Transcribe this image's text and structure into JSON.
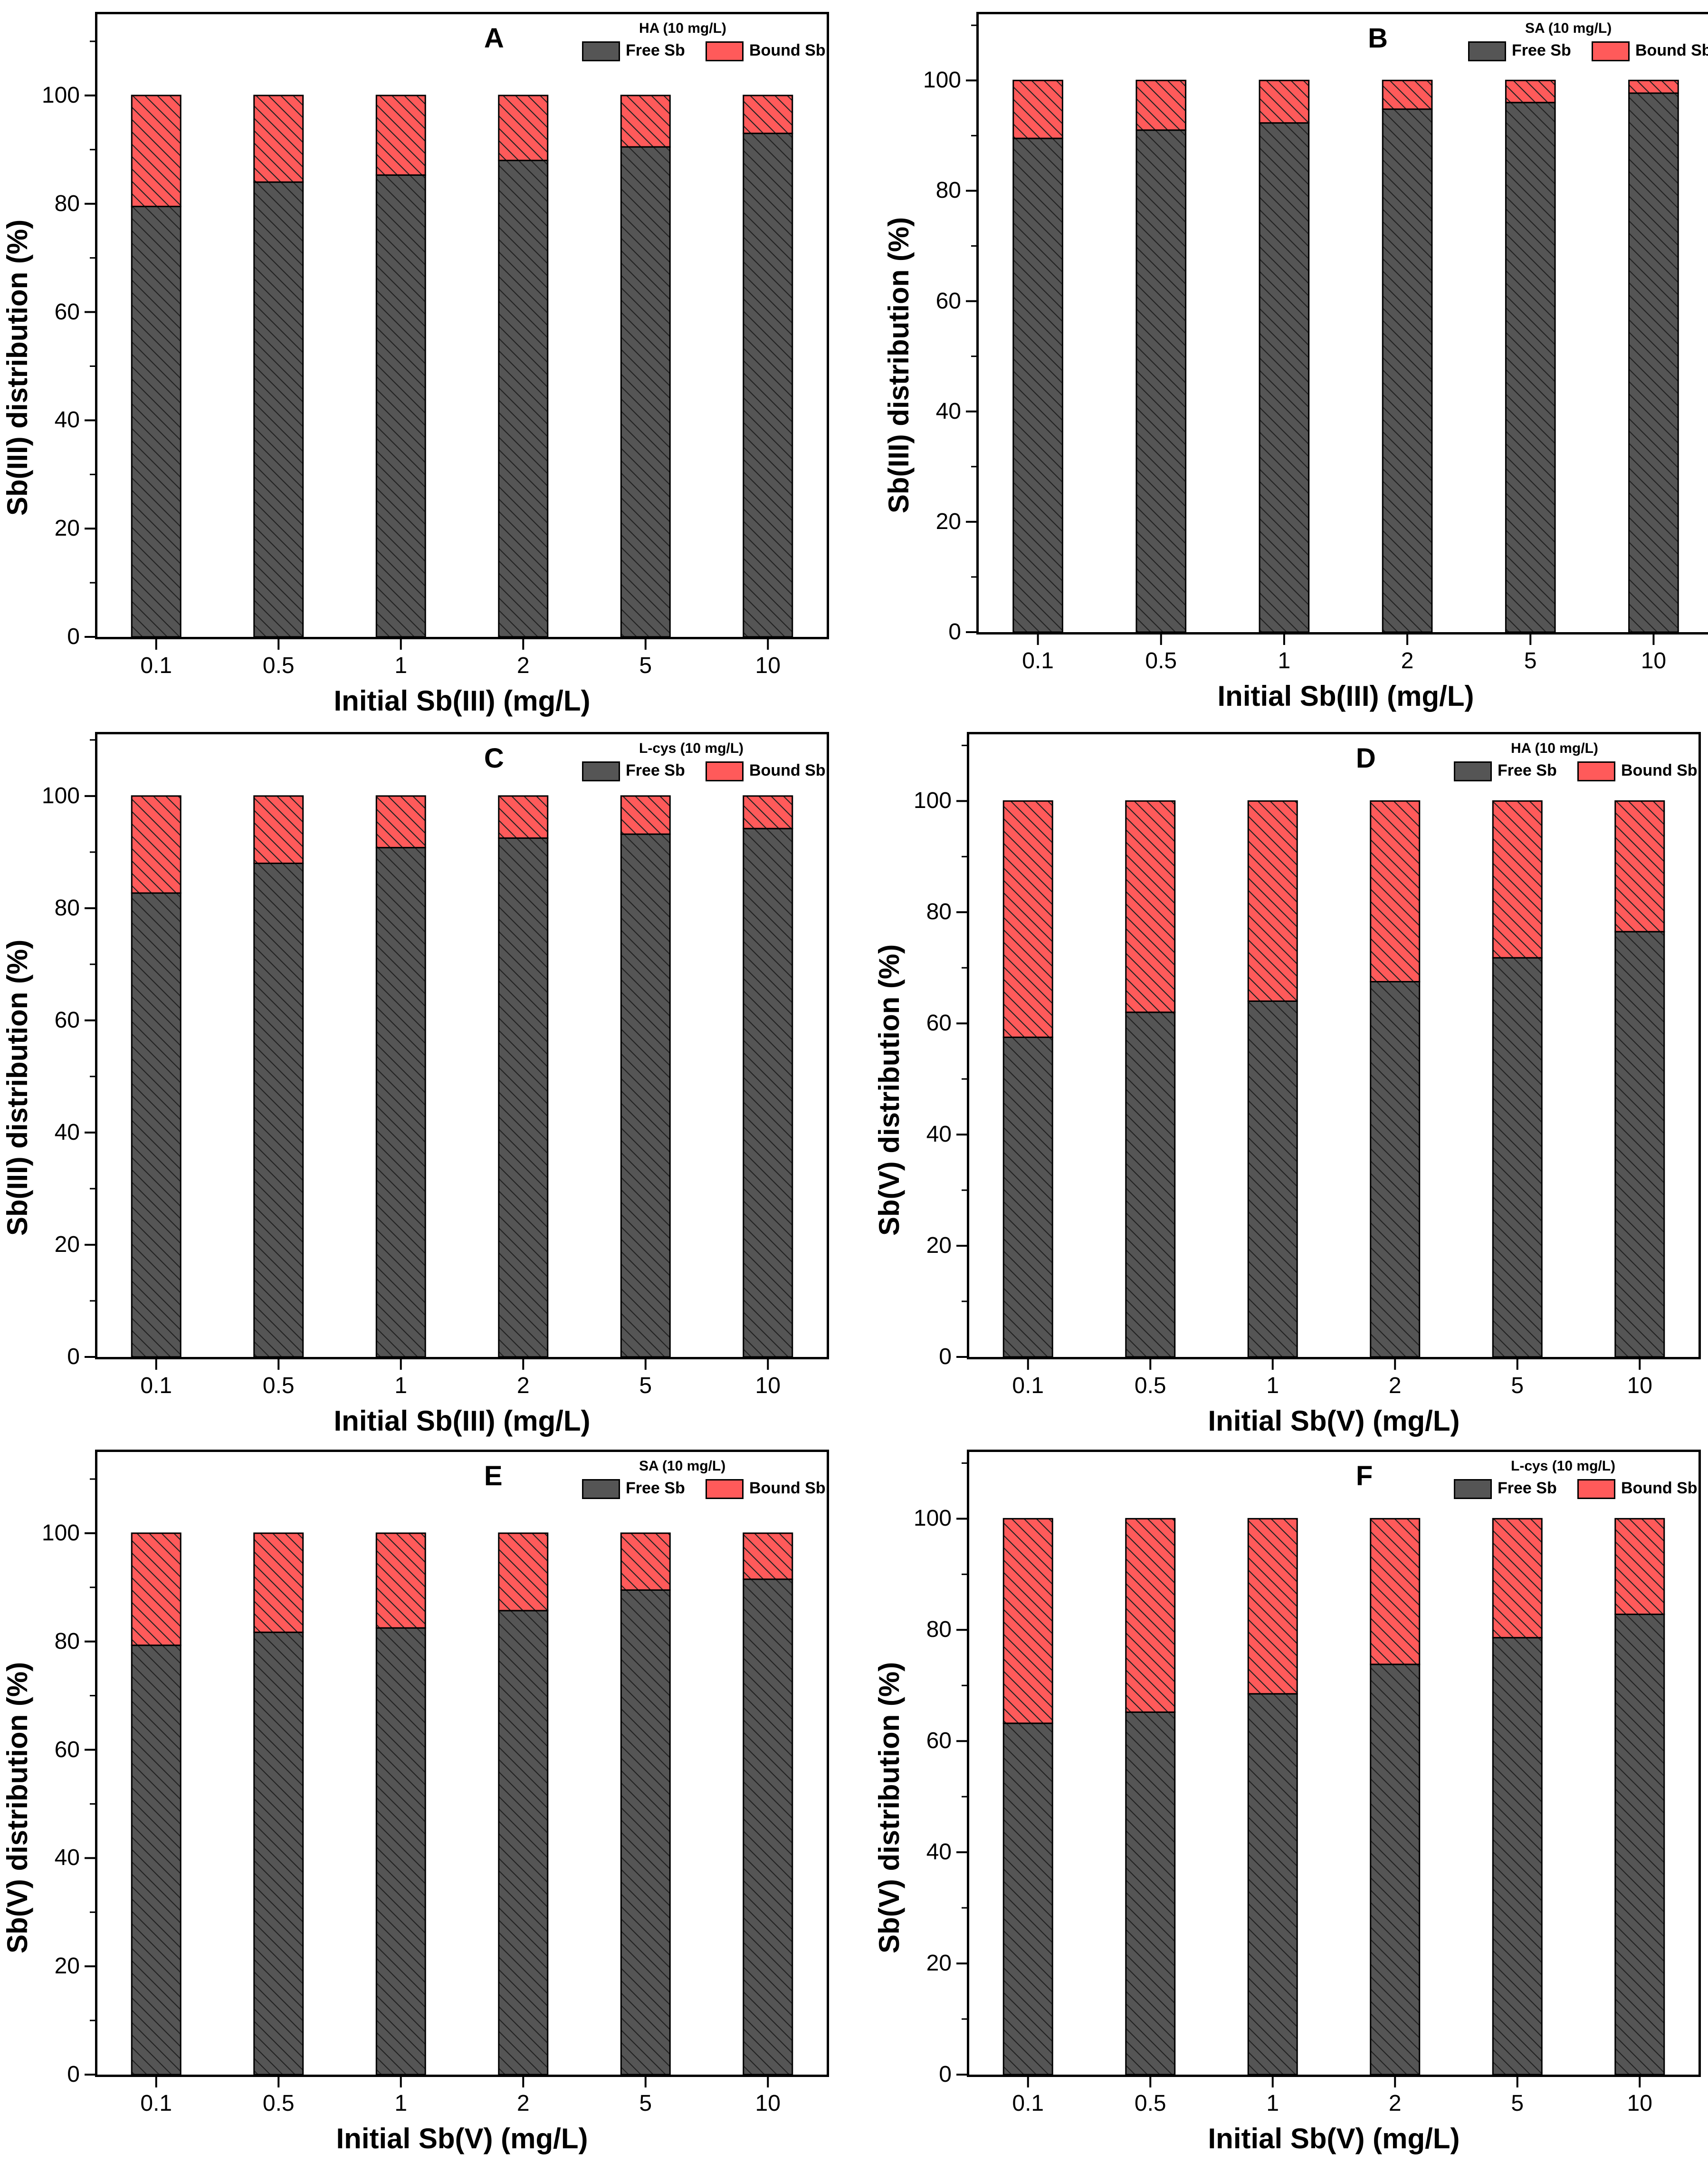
{
  "colors": {
    "free": "#555555",
    "bound": "#ff5a5a",
    "hatch": "#222222",
    "axis": "#000000"
  },
  "chart_data": [
    {
      "type": "bar",
      "stacked": true,
      "panel": "A",
      "legend_title": "HA (10 mg/L)",
      "legend_location": "top-right",
      "categories": [
        "0.1",
        "0.5",
        "1",
        "2",
        "5",
        "10"
      ],
      "series": [
        {
          "name": "Free Sb",
          "values": [
            79.5,
            84,
            85.3,
            88,
            90.5,
            93
          ]
        },
        {
          "name": "Bound Sb",
          "values": [
            20.5,
            16,
            14.7,
            12,
            9.5,
            7
          ]
        }
      ],
      "xlabel": "Initial Sb(III) (mg/L)",
      "ylabel": "Sb(III) distribution (%)",
      "ylim": [
        0,
        115
      ],
      "yticks": [
        "0",
        "20",
        "40",
        "60",
        "80",
        "100"
      ]
    },
    {
      "type": "bar",
      "stacked": true,
      "panel": "B",
      "legend_title": "SA (10 mg/L)",
      "legend_location": "top-right",
      "categories": [
        "0.1",
        "0.5",
        "1",
        "2",
        "5",
        "10"
      ],
      "series": [
        {
          "name": "Free Sb",
          "values": [
            89.5,
            91,
            92.3,
            94.8,
            96,
            97.7
          ]
        },
        {
          "name": "Bound Sb",
          "values": [
            10.5,
            9,
            7.7,
            5.2,
            4,
            2.3
          ]
        }
      ],
      "xlabel": "Initial Sb(III) (mg/L)",
      "ylabel": "Sb(III) distribution (%)",
      "ylim": [
        0,
        112
      ],
      "yticks": [
        "0",
        "20",
        "40",
        "60",
        "80",
        "100"
      ]
    },
    {
      "type": "bar",
      "stacked": true,
      "panel": "C",
      "legend_title": "L-cys (10 mg/L)",
      "legend_location": "top-right",
      "categories": [
        "0.1",
        "0.5",
        "1",
        "2",
        "5",
        "10"
      ],
      "series": [
        {
          "name": "Free Sb",
          "values": [
            82.7,
            88,
            90.8,
            92.5,
            93.2,
            94.2
          ]
        },
        {
          "name": "Bound Sb",
          "values": [
            17.3,
            12,
            9.2,
            7.5,
            6.8,
            5.8
          ]
        }
      ],
      "xlabel": "Initial Sb(III) (mg/L)",
      "ylabel": "Sb(III) distribution (%)",
      "ylim": [
        0,
        111
      ],
      "yticks": [
        "0",
        "20",
        "40",
        "60",
        "80",
        "100"
      ]
    },
    {
      "type": "bar",
      "stacked": true,
      "panel": "D",
      "legend_title": "HA (10 mg/L)",
      "legend_location": "top-right",
      "categories": [
        "0.1",
        "0.5",
        "1",
        "2",
        "5",
        "10"
      ],
      "series": [
        {
          "name": "Free Sb",
          "values": [
            57.5,
            62,
            64,
            67.5,
            71.8,
            76.5
          ]
        },
        {
          "name": "Bound Sb",
          "values": [
            42.5,
            38,
            36,
            32.5,
            28.2,
            23.5
          ]
        }
      ],
      "xlabel": "Initial Sb(V) (mg/L)",
      "ylabel": "Sb(V) distribution (%)",
      "ylim": [
        0,
        112
      ],
      "yticks": [
        "0",
        "20",
        "40",
        "60",
        "80",
        "100"
      ]
    },
    {
      "type": "bar",
      "stacked": true,
      "panel": "E",
      "legend_title": "SA (10 mg/L)",
      "legend_location": "top-right",
      "categories": [
        "0.1",
        "0.5",
        "1",
        "2",
        "5",
        "10"
      ],
      "series": [
        {
          "name": "Free Sb",
          "values": [
            79.3,
            81.7,
            82.5,
            85.7,
            89.5,
            91.5
          ]
        },
        {
          "name": "Bound Sb",
          "values": [
            20.7,
            18.3,
            17.5,
            14.3,
            10.5,
            8.5
          ]
        }
      ],
      "xlabel": "Initial Sb(V) (mg/L)",
      "ylabel": "Sb(V) distribution (%)",
      "ylim": [
        0,
        115
      ],
      "yticks": [
        "0",
        "20",
        "40",
        "60",
        "80",
        "100"
      ]
    },
    {
      "type": "bar",
      "stacked": true,
      "panel": "F",
      "legend_title": "L-cys (10 mg/L)",
      "legend_location": "top-right",
      "categories": [
        "0.1",
        "0.5",
        "1",
        "2",
        "5",
        "10"
      ],
      "series": [
        {
          "name": "Free Sb",
          "values": [
            63.2,
            65.2,
            68.5,
            73.8,
            78.6,
            82.8
          ]
        },
        {
          "name": "Bound Sb",
          "values": [
            36.8,
            34.8,
            31.5,
            26.2,
            21.4,
            17.2
          ]
        }
      ],
      "xlabel": "Initial Sb(V) (mg/L)",
      "ylabel": "Sb(V) distribution (%)",
      "ylim": [
        0,
        112
      ],
      "yticks": [
        "0",
        "20",
        "40",
        "60",
        "80",
        "100"
      ]
    }
  ]
}
